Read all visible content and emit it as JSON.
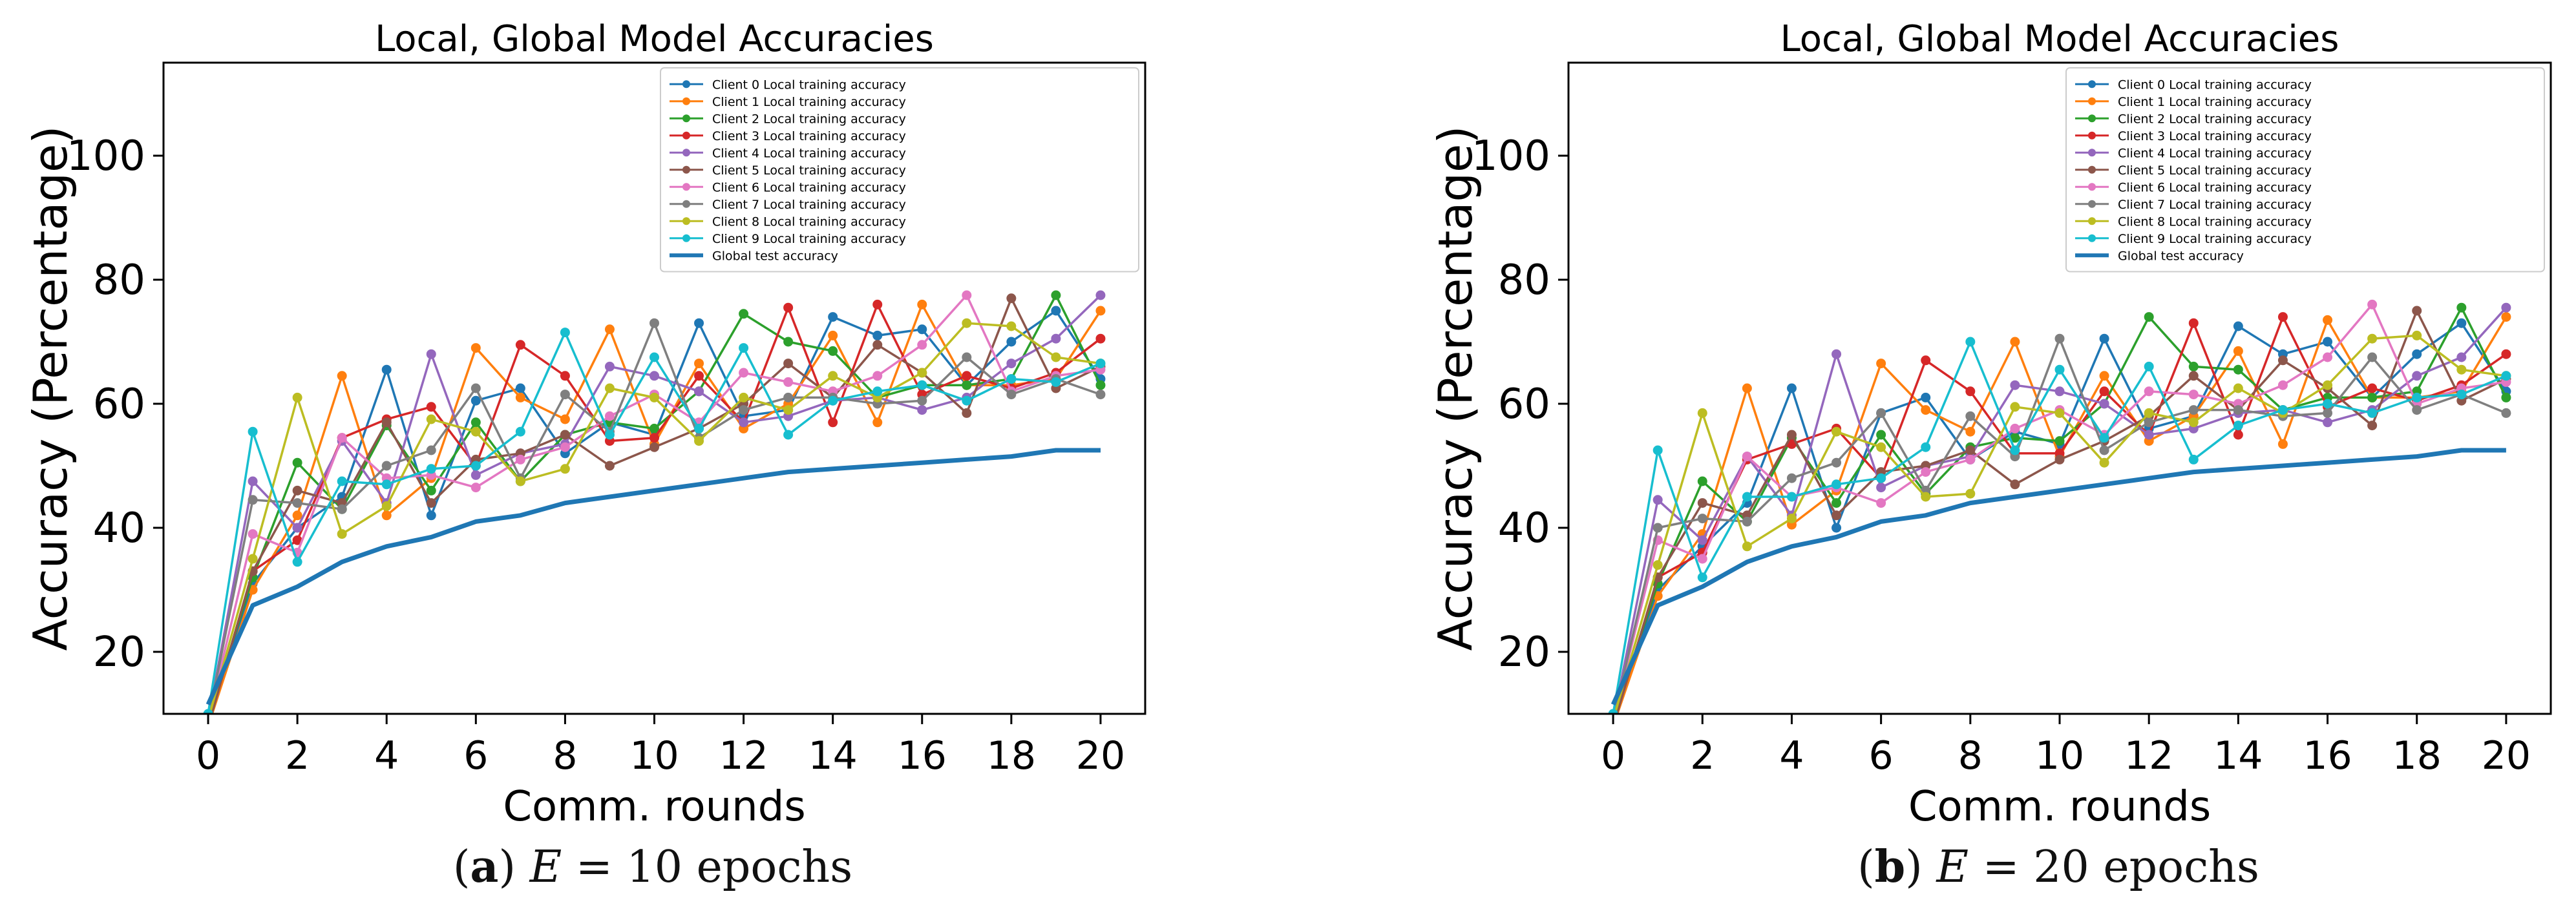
{
  "chart_data": [
    {
      "type": "line",
      "title": "Local, Global Model Accuracies",
      "xlabel": "Comm. rounds",
      "ylabel": "Accuracy (Percentage)",
      "xlim": [
        -1,
        21
      ],
      "ylim": [
        10,
        115
      ],
      "xticks": [
        0,
        2,
        4,
        6,
        8,
        10,
        12,
        14,
        16,
        18,
        20
      ],
      "yticks": [
        20,
        40,
        60,
        80,
        100
      ],
      "legend_position": "top-right",
      "x": [
        0,
        1,
        2,
        3,
        4,
        5,
        6,
        7,
        8,
        9,
        10,
        11,
        12,
        13,
        14,
        15,
        16,
        17,
        18,
        19,
        20
      ],
      "caption": {
        "label": "(a)",
        "math": "E",
        "equals": " = ",
        "text": "10 epochs"
      },
      "series": [
        {
          "name": "Client 0 Local training accuracy",
          "color": "#1f77b4",
          "marker": true,
          "values": [
            9,
            31,
            40,
            45,
            65.5,
            42,
            60.5,
            62.5,
            52,
            57,
            55,
            73,
            58,
            59,
            74,
            71,
            72,
            63,
            70,
            75,
            64
          ]
        },
        {
          "name": "Client 1 Local training accuracy",
          "color": "#ff7f0e",
          "marker": true,
          "values": [
            8,
            30,
            42,
            64.5,
            42,
            48,
            69,
            61,
            57.5,
            72,
            53.5,
            66.5,
            56,
            60,
            71,
            57,
            76,
            63,
            63,
            64,
            75
          ]
        },
        {
          "name": "Client 2 Local training accuracy",
          "color": "#2ca02c",
          "marker": true,
          "values": [
            9,
            32,
            50.5,
            43,
            56.5,
            46,
            57,
            47.5,
            55,
            57,
            56,
            62,
            74.5,
            70,
            68.5,
            61,
            63,
            63,
            64,
            77.5,
            63
          ]
        },
        {
          "name": "Client 3 Local training accuracy",
          "color": "#d62728",
          "marker": true,
          "values": [
            8,
            33,
            38,
            54.5,
            57.5,
            59.5,
            50,
            69.5,
            64.5,
            54,
            54.5,
            64.5,
            57,
            75.5,
            57,
            76,
            61.5,
            64.5,
            62.5,
            65,
            70.5
          ]
        },
        {
          "name": "Client 4 Local training accuracy",
          "color": "#9467bd",
          "marker": true,
          "values": [
            9,
            47.5,
            40,
            54,
            44,
            68,
            48.5,
            52,
            53.5,
            66,
            64.5,
            62,
            57,
            58,
            60.5,
            61,
            59,
            61,
            66.5,
            70.5,
            77.5
          ]
        },
        {
          "name": "Client 5 Local training accuracy",
          "color": "#8c564b",
          "marker": true,
          "values": [
            8,
            33,
            46,
            44,
            57,
            44,
            51,
            52,
            55,
            50,
            53,
            56,
            60,
            66.5,
            61,
            69.5,
            65,
            58.5,
            77,
            62.5,
            66
          ]
        },
        {
          "name": "Client 6 Local training accuracy",
          "color": "#e377c2",
          "marker": true,
          "values": [
            9,
            39,
            36,
            54.5,
            48,
            48.5,
            46.5,
            51,
            53,
            58,
            61.5,
            57,
            65,
            63.5,
            62,
            64.5,
            69.5,
            77.5,
            62,
            64.5,
            65.5
          ]
        },
        {
          "name": "Client 7 Local training accuracy",
          "color": "#7f7f7f",
          "marker": true,
          "values": [
            9,
            44.5,
            44,
            43,
            50,
            52.5,
            62.5,
            48,
            61.5,
            55.5,
            73,
            54.5,
            59,
            61,
            61,
            60,
            60.5,
            67.5,
            61.5,
            64,
            61.5
          ]
        },
        {
          "name": "Client 8 Local training accuracy",
          "color": "#bcbd22",
          "marker": true,
          "values": [
            9,
            35,
            61,
            39,
            43.5,
            57.5,
            55.5,
            47.5,
            49.5,
            62.5,
            61,
            54,
            61,
            59,
            64.5,
            61,
            65,
            73,
            72.5,
            67.5,
            66.5
          ]
        },
        {
          "name": "Client 9 Local training accuracy",
          "color": "#17becf",
          "marker": true,
          "values": [
            10,
            55.5,
            34.5,
            47.5,
            47,
            49.5,
            50,
            55.5,
            71.5,
            55,
            67.5,
            56,
            69,
            55,
            60.5,
            62,
            63,
            60.5,
            64,
            63.5,
            66.5
          ]
        },
        {
          "name": "Global test accuracy",
          "color": "#1f77b4",
          "marker": false,
          "values": [
            11.5,
            27.5,
            30.5,
            34.5,
            37,
            38.5,
            41,
            42,
            44,
            45,
            46,
            47,
            48,
            49,
            49.5,
            50,
            50.5,
            51,
            51.5,
            52.5,
            52.5
          ]
        }
      ]
    },
    {
      "type": "line",
      "title": "Local, Global Model Accuracies",
      "xlabel": "Comm. rounds",
      "ylabel": "Accuracy (Percentage)",
      "xlim": [
        -1,
        21
      ],
      "ylim": [
        10,
        115
      ],
      "xticks": [
        0,
        2,
        4,
        6,
        8,
        10,
        12,
        14,
        16,
        18,
        20
      ],
      "yticks": [
        20,
        40,
        60,
        80,
        100
      ],
      "legend_position": "top-right",
      "x": [
        0,
        1,
        2,
        3,
        4,
        5,
        6,
        7,
        8,
        9,
        10,
        11,
        12,
        13,
        14,
        15,
        16,
        17,
        18,
        19,
        20
      ],
      "caption": {
        "label": "(b)",
        "math": "E",
        "equals": " = ",
        "text": "20 epochs"
      },
      "series": [
        {
          "name": "Client 0 Local training accuracy",
          "color": "#1f77b4",
          "marker": true,
          "values": [
            9,
            30,
            37,
            44,
            62.5,
            40,
            58.5,
            61,
            51,
            55.5,
            53.5,
            70.5,
            56,
            58,
            72.5,
            68,
            70,
            61,
            68,
            73,
            62
          ]
        },
        {
          "name": "Client 1 Local training accuracy",
          "color": "#ff7f0e",
          "marker": true,
          "values": [
            8,
            29,
            39,
            62.5,
            40.5,
            46,
            66.5,
            59,
            55.5,
            70,
            51.5,
            64.5,
            54,
            58,
            68.5,
            53.5,
            73.5,
            61,
            61,
            62,
            74
          ]
        },
        {
          "name": "Client 2 Local training accuracy",
          "color": "#2ca02c",
          "marker": true,
          "values": [
            9,
            31,
            47.5,
            41,
            54.5,
            44,
            55,
            45.5,
            53,
            54.5,
            54,
            60,
            74,
            66,
            65.5,
            59,
            61,
            61,
            62,
            75.5,
            61
          ]
        },
        {
          "name": "Client 3 Local training accuracy",
          "color": "#d62728",
          "marker": true,
          "values": [
            8,
            32,
            36,
            51,
            53.5,
            56,
            48,
            67,
            62,
            52,
            52,
            62,
            55,
            73,
            55,
            74,
            59.5,
            62.5,
            60.5,
            63,
            68
          ]
        },
        {
          "name": "Client 4 Local training accuracy",
          "color": "#9467bd",
          "marker": true,
          "values": [
            9,
            44.5,
            38,
            51.5,
            42,
            68,
            46.5,
            50,
            51.5,
            63,
            62,
            60,
            55,
            56,
            58.5,
            59,
            57,
            59,
            64.5,
            67.5,
            75.5
          ]
        },
        {
          "name": "Client 5 Local training accuracy",
          "color": "#8c564b",
          "marker": true,
          "values": [
            8,
            32,
            44,
            42,
            55,
            42,
            49,
            50,
            52.5,
            47,
            51,
            54,
            58,
            64.5,
            59,
            67,
            62.5,
            56.5,
            75,
            60.5,
            64
          ]
        },
        {
          "name": "Client 6 Local training accuracy",
          "color": "#e377c2",
          "marker": true,
          "values": [
            9,
            38,
            35,
            51.5,
            45,
            46.5,
            44,
            49,
            51,
            56,
            59,
            55,
            62,
            61.5,
            60,
            63,
            67.5,
            76,
            60,
            62.5,
            63.5
          ]
        },
        {
          "name": "Client 7 Local training accuracy",
          "color": "#7f7f7f",
          "marker": true,
          "values": [
            9,
            40,
            41.5,
            41,
            48,
            50.5,
            58.5,
            46,
            58,
            51.5,
            70.5,
            52.5,
            57,
            59,
            59,
            58,
            58.5,
            67.5,
            59,
            61.5,
            58.5
          ]
        },
        {
          "name": "Client 8 Local training accuracy",
          "color": "#bcbd22",
          "marker": true,
          "values": [
            9,
            34,
            58.5,
            37,
            41.5,
            55.5,
            53,
            45,
            45.5,
            59.5,
            58.5,
            50.5,
            58.5,
            57,
            62.5,
            58.5,
            63,
            70.5,
            71,
            65.5,
            64.5
          ]
        },
        {
          "name": "Client 9 Local training accuracy",
          "color": "#17becf",
          "marker": true,
          "values": [
            10,
            52.5,
            32,
            45,
            45,
            47,
            48,
            53,
            70,
            52.5,
            65.5,
            54.5,
            66,
            51,
            56.5,
            59,
            60,
            58.5,
            61,
            61.5,
            64.5
          ]
        },
        {
          "name": "Global test accuracy",
          "color": "#1f77b4",
          "marker": false,
          "values": [
            11.5,
            27.5,
            30.5,
            34.5,
            37,
            38.5,
            41,
            42,
            44,
            45,
            46,
            47,
            48,
            49,
            49.5,
            50,
            50.5,
            51,
            51.5,
            52.5,
            52.5
          ]
        }
      ]
    }
  ]
}
